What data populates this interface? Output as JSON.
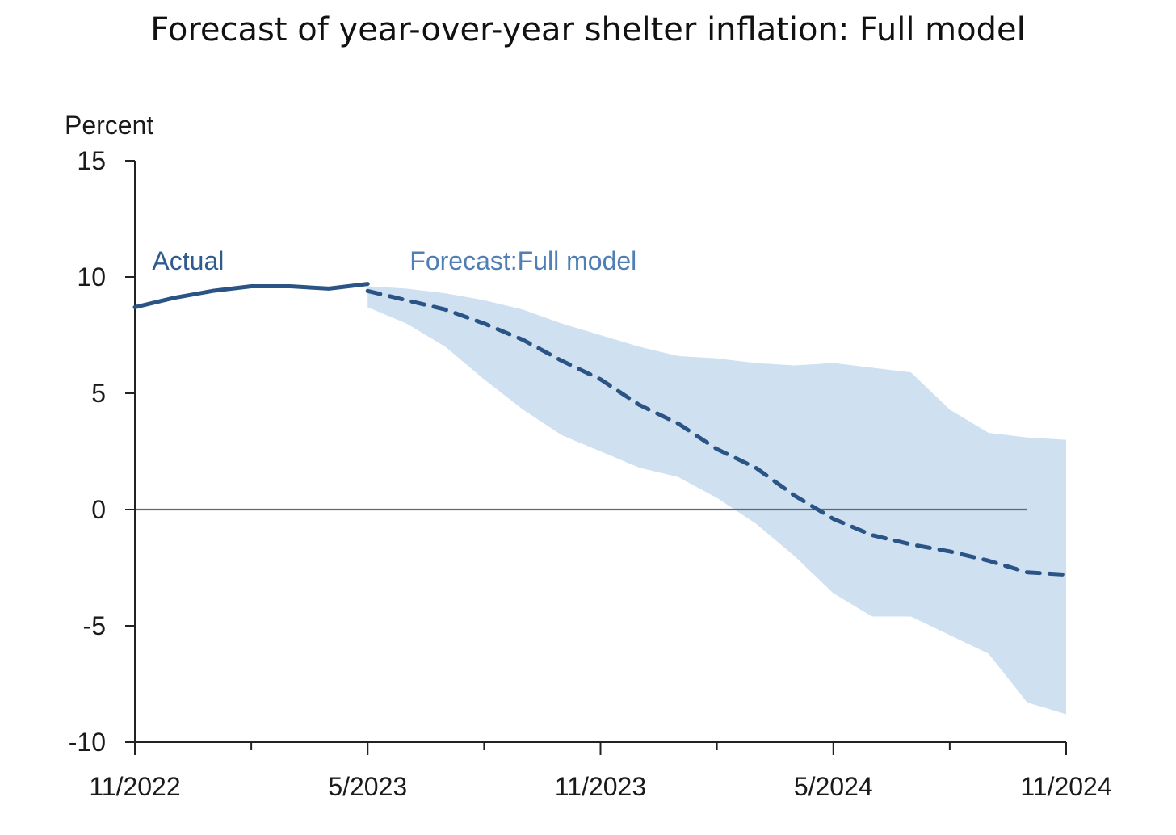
{
  "chart_data": {
    "type": "line",
    "title": "Forecast of year-over-year shelter inflation: Full model",
    "ylabel": "Percent",
    "xlabel": "",
    "ylim": [
      -10,
      15
    ],
    "yticks": [
      15,
      10,
      5,
      0,
      -5,
      -10
    ],
    "xlim": [
      0,
      24
    ],
    "xticks": [
      {
        "x": 0,
        "label": "11/2022"
      },
      {
        "x": 6,
        "label": "5/2023"
      },
      {
        "x": 12,
        "label": "11/2023"
      },
      {
        "x": 18,
        "label": "5/2024"
      },
      {
        "x": 24,
        "label": "11/2024"
      }
    ],
    "minor_xticks": [
      3,
      9,
      15,
      21
    ],
    "grid": false,
    "zero_line": true,
    "annotations": [
      {
        "text": "Actual",
        "color": "#2f5b8f",
        "x": 0.3,
        "y": 10.7
      },
      {
        "text": "Forecast:Full model",
        "color": "#4f7fb5",
        "x": 7,
        "y": 10.7
      }
    ],
    "series": [
      {
        "name": "Actual",
        "style": "solid",
        "color": "#2a5485",
        "x": [
          0,
          1,
          2,
          3,
          4,
          5,
          6
        ],
        "y": [
          8.7,
          9.1,
          9.4,
          9.6,
          9.6,
          9.5,
          9.7
        ]
      },
      {
        "name": "Forecast: Full model",
        "style": "dashed",
        "color": "#2a5485",
        "x": [
          6,
          7,
          8,
          9,
          10,
          11,
          12,
          13,
          14,
          15,
          16,
          17,
          18,
          19,
          20,
          21,
          22,
          23,
          24
        ],
        "y": [
          9.4,
          9.0,
          8.6,
          8.0,
          7.3,
          6.4,
          5.6,
          4.5,
          3.7,
          2.6,
          1.8,
          0.6,
          -0.4,
          -1.1,
          -1.5,
          -1.8,
          -2.2,
          -2.7,
          -2.8
        ]
      }
    ],
    "band": {
      "name": "Forecast range",
      "color": "#cfe0f1",
      "x": [
        6,
        7,
        8,
        9,
        10,
        11,
        12,
        13,
        14,
        15,
        16,
        17,
        18,
        19,
        20,
        21,
        22,
        23,
        24
      ],
      "lower": [
        8.7,
        8.0,
        7.0,
        5.6,
        4.3,
        3.2,
        2.5,
        1.8,
        1.4,
        0.5,
        -0.6,
        -2.0,
        -3.6,
        -4.6,
        -4.6,
        -5.4,
        -6.2,
        -8.3,
        -8.8
      ],
      "upper": [
        9.6,
        9.5,
        9.3,
        9.0,
        8.6,
        8.0,
        7.5,
        7.0,
        6.6,
        6.5,
        6.3,
        6.2,
        6.3,
        6.1,
        5.9,
        4.3,
        3.3,
        3.1,
        3.0
      ]
    }
  }
}
